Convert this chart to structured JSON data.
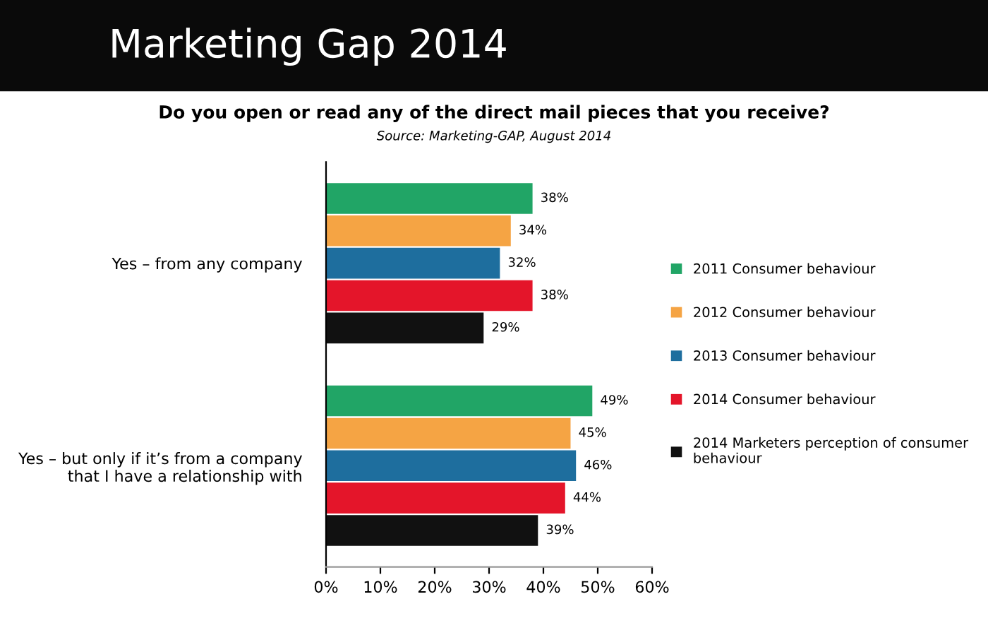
{
  "chart_data": {
    "type": "bar",
    "orientation": "horizontal",
    "title": "Marketing Gap 2014",
    "subtitle": "Do you open or read any of the direct mail pieces that you receive?",
    "annotations": [
      "Source: Marketing-GAP, August 2014"
    ],
    "categories": [
      "Yes – from any company",
      "Yes – but only if it’s from a company\nthat I have a relationship with"
    ],
    "series": [
      {
        "name": "2011 Consumer behaviour",
        "color": "#21a566",
        "values": [
          38,
          49
        ],
        "value_labels": [
          "38%",
          "49%"
        ]
      },
      {
        "name": "2012 Consumer behaviour",
        "color": "#f5a444",
        "values": [
          34,
          45
        ],
        "value_labels": [
          "34%",
          "45%"
        ]
      },
      {
        "name": "2013 Consumer behaviour",
        "color": "#1e6e9e",
        "values": [
          32,
          46
        ],
        "value_labels": [
          "32%",
          "46%"
        ]
      },
      {
        "name": "2014 Consumer behaviour",
        "color": "#e4152a",
        "values": [
          38,
          44
        ],
        "value_labels": [
          "38%",
          "44%"
        ]
      },
      {
        "name": "2014 Marketers perception of consumer\nbehaviour",
        "color": "#111111",
        "values": [
          29,
          39
        ],
        "value_labels": [
          "29%",
          "39%"
        ]
      }
    ],
    "xlim": [
      0,
      60
    ],
    "xticks": [
      {
        "value": 0,
        "label": "0%"
      },
      {
        "value": 10,
        "label": "10%"
      },
      {
        "value": 20,
        "label": "20%"
      },
      {
        "value": 30,
        "label": "30%"
      },
      {
        "value": 40,
        "label": "40%"
      },
      {
        "value": 50,
        "label": "50%"
      },
      {
        "value": 60,
        "label": "60%"
      }
    ],
    "grid": false,
    "legend": "right"
  }
}
